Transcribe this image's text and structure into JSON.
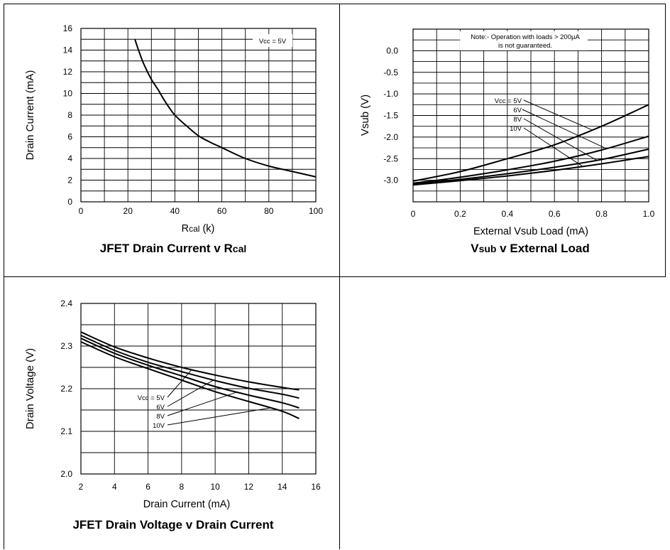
{
  "chart_data": [
    {
      "type": "line",
      "title": "JFET Drain Current v Rcal",
      "title_main": "JFET Drain Current v R",
      "title_sub": "cal",
      "xlabel_main": "R",
      "xlabel_sub": "cal",
      "xlabel_suffix": " (k)",
      "ylabel": "Drain Current (mA)",
      "xlim": [
        0,
        100
      ],
      "ylim": [
        0,
        16
      ],
      "x_ticks": [
        "0",
        "20",
        "40",
        "60",
        "80",
        "100"
      ],
      "y_ticks": [
        "0",
        "2",
        "4",
        "6",
        "8",
        "10",
        "12",
        "14",
        "16"
      ],
      "grid": true,
      "annotation": "Vcc = 5V",
      "series": [
        {
          "x": [
            23,
            25,
            27,
            30,
            33,
            36,
            40,
            45,
            50,
            55,
            60,
            70,
            80,
            90,
            100
          ],
          "y": [
            15.0,
            13.7,
            12.6,
            11.3,
            10.3,
            9.2,
            8.0,
            7.0,
            6.1,
            5.5,
            5.0,
            4.0,
            3.3,
            2.8,
            2.3
          ]
        }
      ]
    },
    {
      "type": "line",
      "title": "Vsub v External Load",
      "title_main": "V",
      "title_sub": "sub",
      "title_suffix": " v External Load",
      "xlabel": "External Vsub Load (mA)",
      "ylabel": "Vsub (V)",
      "xlim": [
        0,
        1.0
      ],
      "ylim": [
        -3.5,
        0.5
      ],
      "x_ticks": [
        "0",
        "0.2",
        "0.4",
        "0.6",
        "0.8",
        "1.0"
      ],
      "y_ticks": [
        "0.0",
        "-0.5",
        "-1.0",
        "-1.5",
        "-2.0",
        "-2.5",
        "-3.0"
      ],
      "y_tick_values": [
        0.0,
        -0.5,
        -1.0,
        -1.5,
        -2.0,
        -2.5,
        -3.0
      ],
      "grid": true,
      "note_line1": "Note:- Operation with loads > 200µA",
      "note_line2": "is not guaranteed.",
      "series": [
        {
          "name": "Vcc = 5V",
          "x": [
            0,
            0.2,
            0.4,
            0.6,
            0.8,
            1.0
          ],
          "y": [
            -3.02,
            -2.8,
            -2.5,
            -2.18,
            -1.75,
            -1.25
          ]
        },
        {
          "name": "6V",
          "x": [
            0,
            0.2,
            0.4,
            0.6,
            0.8,
            1.0
          ],
          "y": [
            -3.07,
            -2.93,
            -2.76,
            -2.56,
            -2.3,
            -1.98
          ]
        },
        {
          "name": "8V",
          "x": [
            0,
            0.2,
            0.4,
            0.6,
            0.8,
            1.0
          ],
          "y": [
            -3.09,
            -2.98,
            -2.85,
            -2.7,
            -2.52,
            -2.28
          ]
        },
        {
          "name": "10V",
          "x": [
            0,
            0.2,
            0.4,
            0.6,
            0.8,
            1.0
          ],
          "y": [
            -3.11,
            -3.01,
            -2.9,
            -2.77,
            -2.62,
            -2.45
          ]
        }
      ]
    },
    {
      "type": "line",
      "title": "JFET Drain Voltage v Drain Current",
      "xlabel": "Drain Current (mA)",
      "ylabel": "Drain Voltage (V)",
      "xlim": [
        2,
        16
      ],
      "ylim": [
        2.0,
        2.4
      ],
      "x_ticks": [
        "2",
        "4",
        "6",
        "8",
        "10",
        "12",
        "14",
        "16"
      ],
      "y_ticks": [
        "2.0",
        "2.1",
        "2.2",
        "2.3",
        "2.4"
      ],
      "grid": true,
      "series": [
        {
          "name": "Vcc = 5V",
          "x": [
            2,
            4,
            6,
            8,
            10,
            12,
            14,
            15
          ],
          "y": [
            2.333,
            2.298,
            2.272,
            2.25,
            2.232,
            2.216,
            2.203,
            2.197
          ]
        },
        {
          "name": "6V",
          "x": [
            2,
            4,
            6,
            8,
            10,
            12,
            14,
            15
          ],
          "y": [
            2.325,
            2.29,
            2.262,
            2.24,
            2.219,
            2.201,
            2.187,
            2.178
          ]
        },
        {
          "name": "8V",
          "x": [
            2,
            4,
            6,
            8,
            10,
            12,
            14,
            15
          ],
          "y": [
            2.318,
            2.283,
            2.255,
            2.23,
            2.205,
            2.185,
            2.167,
            2.155
          ]
        },
        {
          "name": "10V",
          "x": [
            2,
            4,
            6,
            8,
            10,
            12,
            14,
            15
          ],
          "y": [
            2.31,
            2.275,
            2.247,
            2.22,
            2.193,
            2.17,
            2.147,
            2.13
          ]
        }
      ]
    }
  ]
}
